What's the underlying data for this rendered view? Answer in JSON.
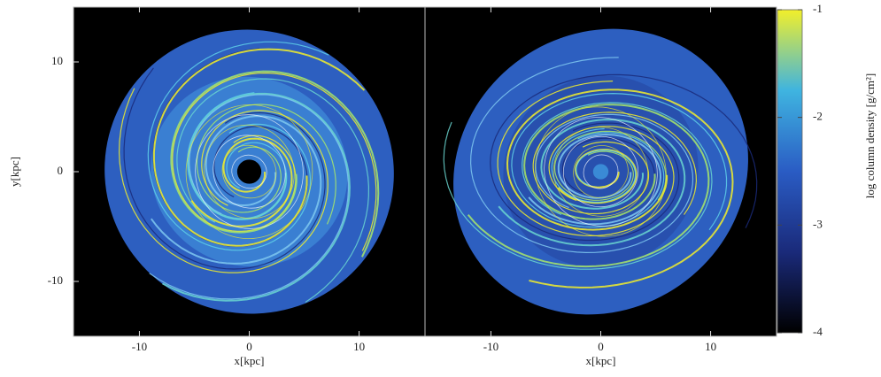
{
  "chart_data": [
    {
      "type": "density-map",
      "xlabel": "x[kpc]",
      "ylabel": "y[kpc]",
      "xlim": [
        -16,
        16
      ],
      "ylim": [
        -15,
        15
      ],
      "xticks": [
        -10,
        0,
        10
      ],
      "yticks": [
        -10,
        0,
        10
      ]
    },
    {
      "type": "density-map",
      "xlabel": "x[kpc]",
      "xlim": [
        -16,
        16
      ],
      "ylim": [
        -15,
        15
      ],
      "xticks": [
        -10,
        0,
        10
      ]
    },
    {
      "type": "colorbar",
      "label": "log column density [g/cm²]",
      "clim": [
        -4,
        -1
      ],
      "ticks": [
        -4,
        -3,
        -2,
        -1
      ],
      "colors": [
        "#000000",
        "#1a2a7a",
        "#2a5cc4",
        "#3fb4e0",
        "#f2ef2a"
      ]
    }
  ]
}
